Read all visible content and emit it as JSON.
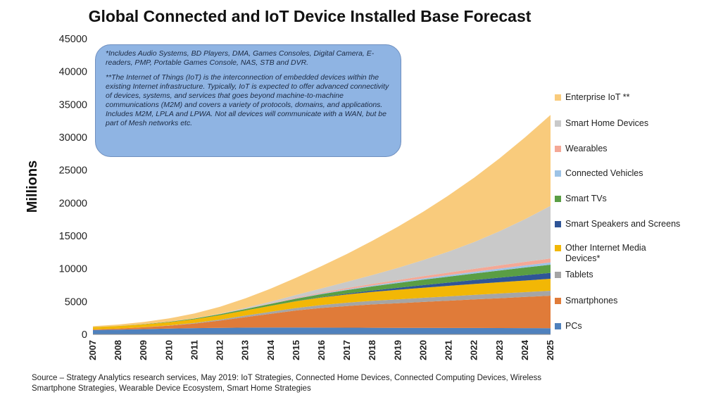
{
  "chart_data": {
    "type": "area",
    "stacked": true,
    "title": "Global Connected and IoT Device Installed Base Forecast",
    "ylabel": "Millions",
    "xlabel": "",
    "ylim": [
      0,
      45000
    ],
    "yticks": [
      0,
      5000,
      10000,
      15000,
      20000,
      25000,
      30000,
      35000,
      40000,
      45000
    ],
    "x": [
      "2007",
      "2008",
      "2009",
      "2010",
      "2011",
      "2012",
      "2013",
      "2014",
      "2015",
      "2016",
      "2017",
      "2018",
      "2019",
      "2020",
      "2021",
      "2022",
      "2023",
      "2024",
      "2025"
    ],
    "grid": false,
    "legend_position": "right",
    "series": [
      {
        "name": "PCs",
        "color": "#4f81bd",
        "values": [
          650,
          720,
          800,
          880,
          950,
          1000,
          1030,
          1040,
          1040,
          1030,
          1020,
          1010,
          1000,
          990,
          980,
          970,
          960,
          950,
          940
        ]
      },
      {
        "name": "Smartphones",
        "color": "#e07b39",
        "values": [
          100,
          170,
          280,
          450,
          700,
          1100,
          1600,
          2100,
          2600,
          3000,
          3300,
          3550,
          3750,
          3950,
          4150,
          4350,
          4550,
          4750,
          4950
        ]
      },
      {
        "name": "Tablets",
        "color": "#a5a5a5",
        "values": [
          0,
          0,
          10,
          40,
          90,
          150,
          230,
          310,
          380,
          440,
          500,
          550,
          590,
          630,
          660,
          690,
          710,
          730,
          750
        ]
      },
      {
        "name": "Other Internet Media Devices*",
        "color": "#f2b705",
        "values": [
          350,
          380,
          420,
          480,
          560,
          660,
          780,
          900,
          1030,
          1150,
          1260,
          1360,
          1450,
          1530,
          1600,
          1660,
          1720,
          1770,
          1820
        ]
      },
      {
        "name": "Smart Speakers and Screens",
        "color": "#2f5597",
        "values": [
          0,
          0,
          0,
          0,
          0,
          0,
          0,
          5,
          20,
          60,
          120,
          200,
          300,
          400,
          500,
          600,
          700,
          800,
          900
        ]
      },
      {
        "name": "Smart TVs",
        "color": "#5a9e44",
        "values": [
          10,
          20,
          40,
          70,
          110,
          160,
          220,
          290,
          370,
          460,
          550,
          640,
          730,
          820,
          910,
          1000,
          1090,
          1180,
          1250
        ]
      },
      {
        "name": "Connected Vehicles",
        "color": "#9dc3e6",
        "values": [
          0,
          0,
          5,
          10,
          15,
          20,
          30,
          40,
          60,
          80,
          110,
          140,
          170,
          200,
          230,
          260,
          290,
          320,
          350
        ]
      },
      {
        "name": "Wearables",
        "color": "#f4a896",
        "values": [
          0,
          0,
          0,
          0,
          0,
          0,
          20,
          50,
          90,
          140,
          190,
          240,
          290,
          340,
          390,
          440,
          490,
          540,
          600
        ]
      },
      {
        "name": "Smart Home Devices",
        "color": "#c9c9c9",
        "values": [
          0,
          0,
          0,
          0,
          20,
          60,
          130,
          250,
          420,
          650,
          950,
          1350,
          1850,
          2450,
          3200,
          4100,
          5200,
          6500,
          8000
        ]
      },
      {
        "name": "Enterprise IoT **",
        "color": "#f9cb7c",
        "values": [
          130,
          210,
          330,
          500,
          740,
          1050,
          1460,
          1990,
          2630,
          3390,
          4260,
          5220,
          6260,
          7380,
          8560,
          9800,
          11100,
          12460,
          13840
        ]
      }
    ]
  },
  "note_box": {
    "note1": "*Includes Audio Systems, BD Players, DMA, Games Consoles, Digital Camera, E-readers, PMP, Portable Games Console, NAS, STB and DVR.",
    "note2": "**The Internet of Things (IoT) is the interconnection of embedded devices within the existing Internet infrastructure. Typically, IoT is expected to offer advanced connectivity of devices, systems, and services that goes beyond machine-to-machine communications (M2M) and covers a variety of protocols, domains, and applications. Includes M2M, LPLA and LPWA. Not all devices will communicate with a WAN, but be part of Mesh networks etc."
  },
  "source": "Source – Strategy Analytics research services, May 2019: IoT Strategies, Connected Home Devices, Connected Computing Devices, Wireless Smartphone Strategies, Wearable Device Ecosystem,  Smart Home Strategies"
}
